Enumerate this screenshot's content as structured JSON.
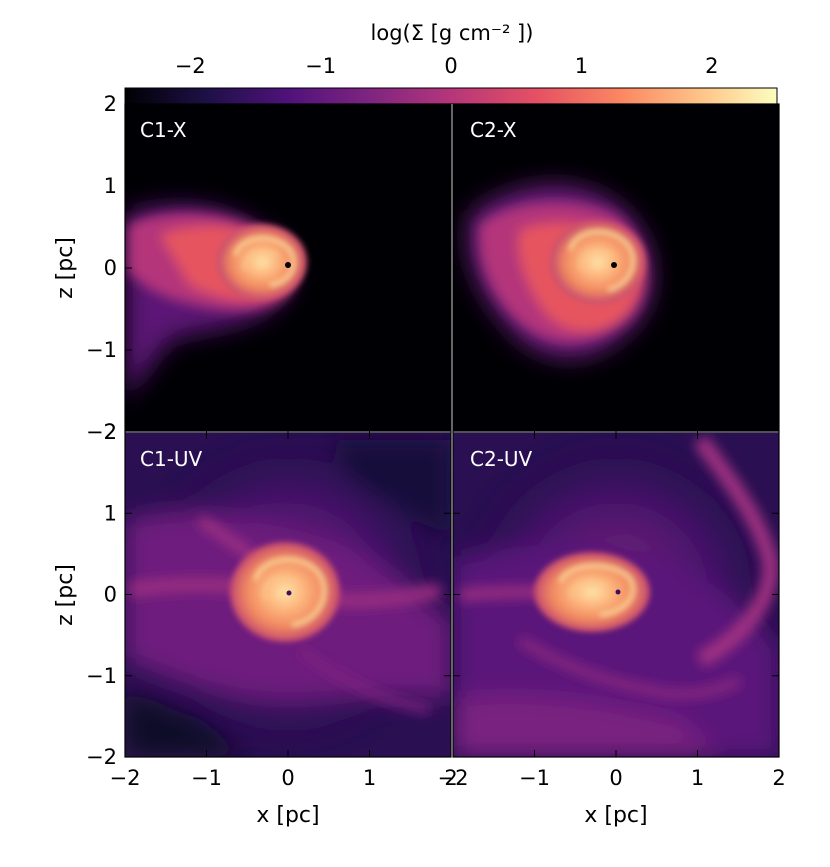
{
  "colorbar": {
    "label": "log(Σ [g  cm⁻² ])",
    "ticks": [
      "−2",
      "−1",
      "0",
      "1",
      "2"
    ],
    "range": [
      -2.5,
      2.5
    ],
    "colormap": [
      "#000004",
      "#1c1044",
      "#4f127b",
      "#812581",
      "#b5367a",
      "#e55064",
      "#fb8761",
      "#fec287",
      "#fcfdbf"
    ]
  },
  "panels": [
    {
      "id": "c1-x",
      "label": "C1-X"
    },
    {
      "id": "c2-x",
      "label": "C2-X"
    },
    {
      "id": "c1-uv",
      "label": "C1-UV"
    },
    {
      "id": "c2-uv",
      "label": "C2-UV"
    }
  ],
  "axes": {
    "xlabel": "x [pc]",
    "ylabel": "z [pc]",
    "x_ticks": [
      "−2",
      "−1",
      "0",
      "1",
      "2"
    ],
    "y_ticks": [
      "2",
      "1",
      "0",
      "−1",
      "−2"
    ],
    "x_range": [
      -2,
      2
    ],
    "y_range": [
      -2,
      2
    ]
  }
}
